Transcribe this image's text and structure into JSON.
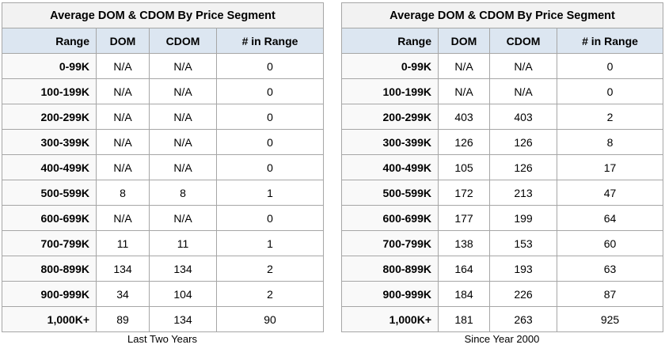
{
  "tables": [
    {
      "title": "Average DOM & CDOM By Price Segment",
      "columns": [
        "Range",
        "DOM",
        "CDOM",
        "# in Range"
      ],
      "rows": [
        [
          "0-99K",
          "N/A",
          "N/A",
          0
        ],
        [
          "100-199K",
          "N/A",
          "N/A",
          0
        ],
        [
          "200-299K",
          "N/A",
          "N/A",
          0
        ],
        [
          "300-399K",
          "N/A",
          "N/A",
          0
        ],
        [
          "400-499K",
          "N/A",
          "N/A",
          0
        ],
        [
          "500-599K",
          8,
          8,
          1
        ],
        [
          "600-699K",
          "N/A",
          "N/A",
          0
        ],
        [
          "700-799K",
          11,
          11,
          1
        ],
        [
          "800-899K",
          134,
          134,
          2
        ],
        [
          "900-999K",
          34,
          104,
          2
        ],
        [
          "1,000K+",
          89,
          134,
          90
        ]
      ],
      "caption": "Last Two Years"
    },
    {
      "title": "Average DOM & CDOM By Price Segment",
      "columns": [
        "Range",
        "DOM",
        "CDOM",
        "# in Range"
      ],
      "rows": [
        [
          "0-99K",
          "N/A",
          "N/A",
          0
        ],
        [
          "100-199K",
          "N/A",
          "N/A",
          0
        ],
        [
          "200-299K",
          403,
          403,
          2
        ],
        [
          "300-399K",
          126,
          126,
          8
        ],
        [
          "400-499K",
          105,
          126,
          17
        ],
        [
          "500-599K",
          172,
          213,
          47
        ],
        [
          "600-699K",
          177,
          199,
          64
        ],
        [
          "700-799K",
          138,
          153,
          60
        ],
        [
          "800-899K",
          164,
          193,
          63
        ],
        [
          "900-999K",
          184,
          226,
          87
        ],
        [
          "1,000K+",
          181,
          263,
          925
        ]
      ],
      "caption": "Since Year 2000"
    }
  ]
}
